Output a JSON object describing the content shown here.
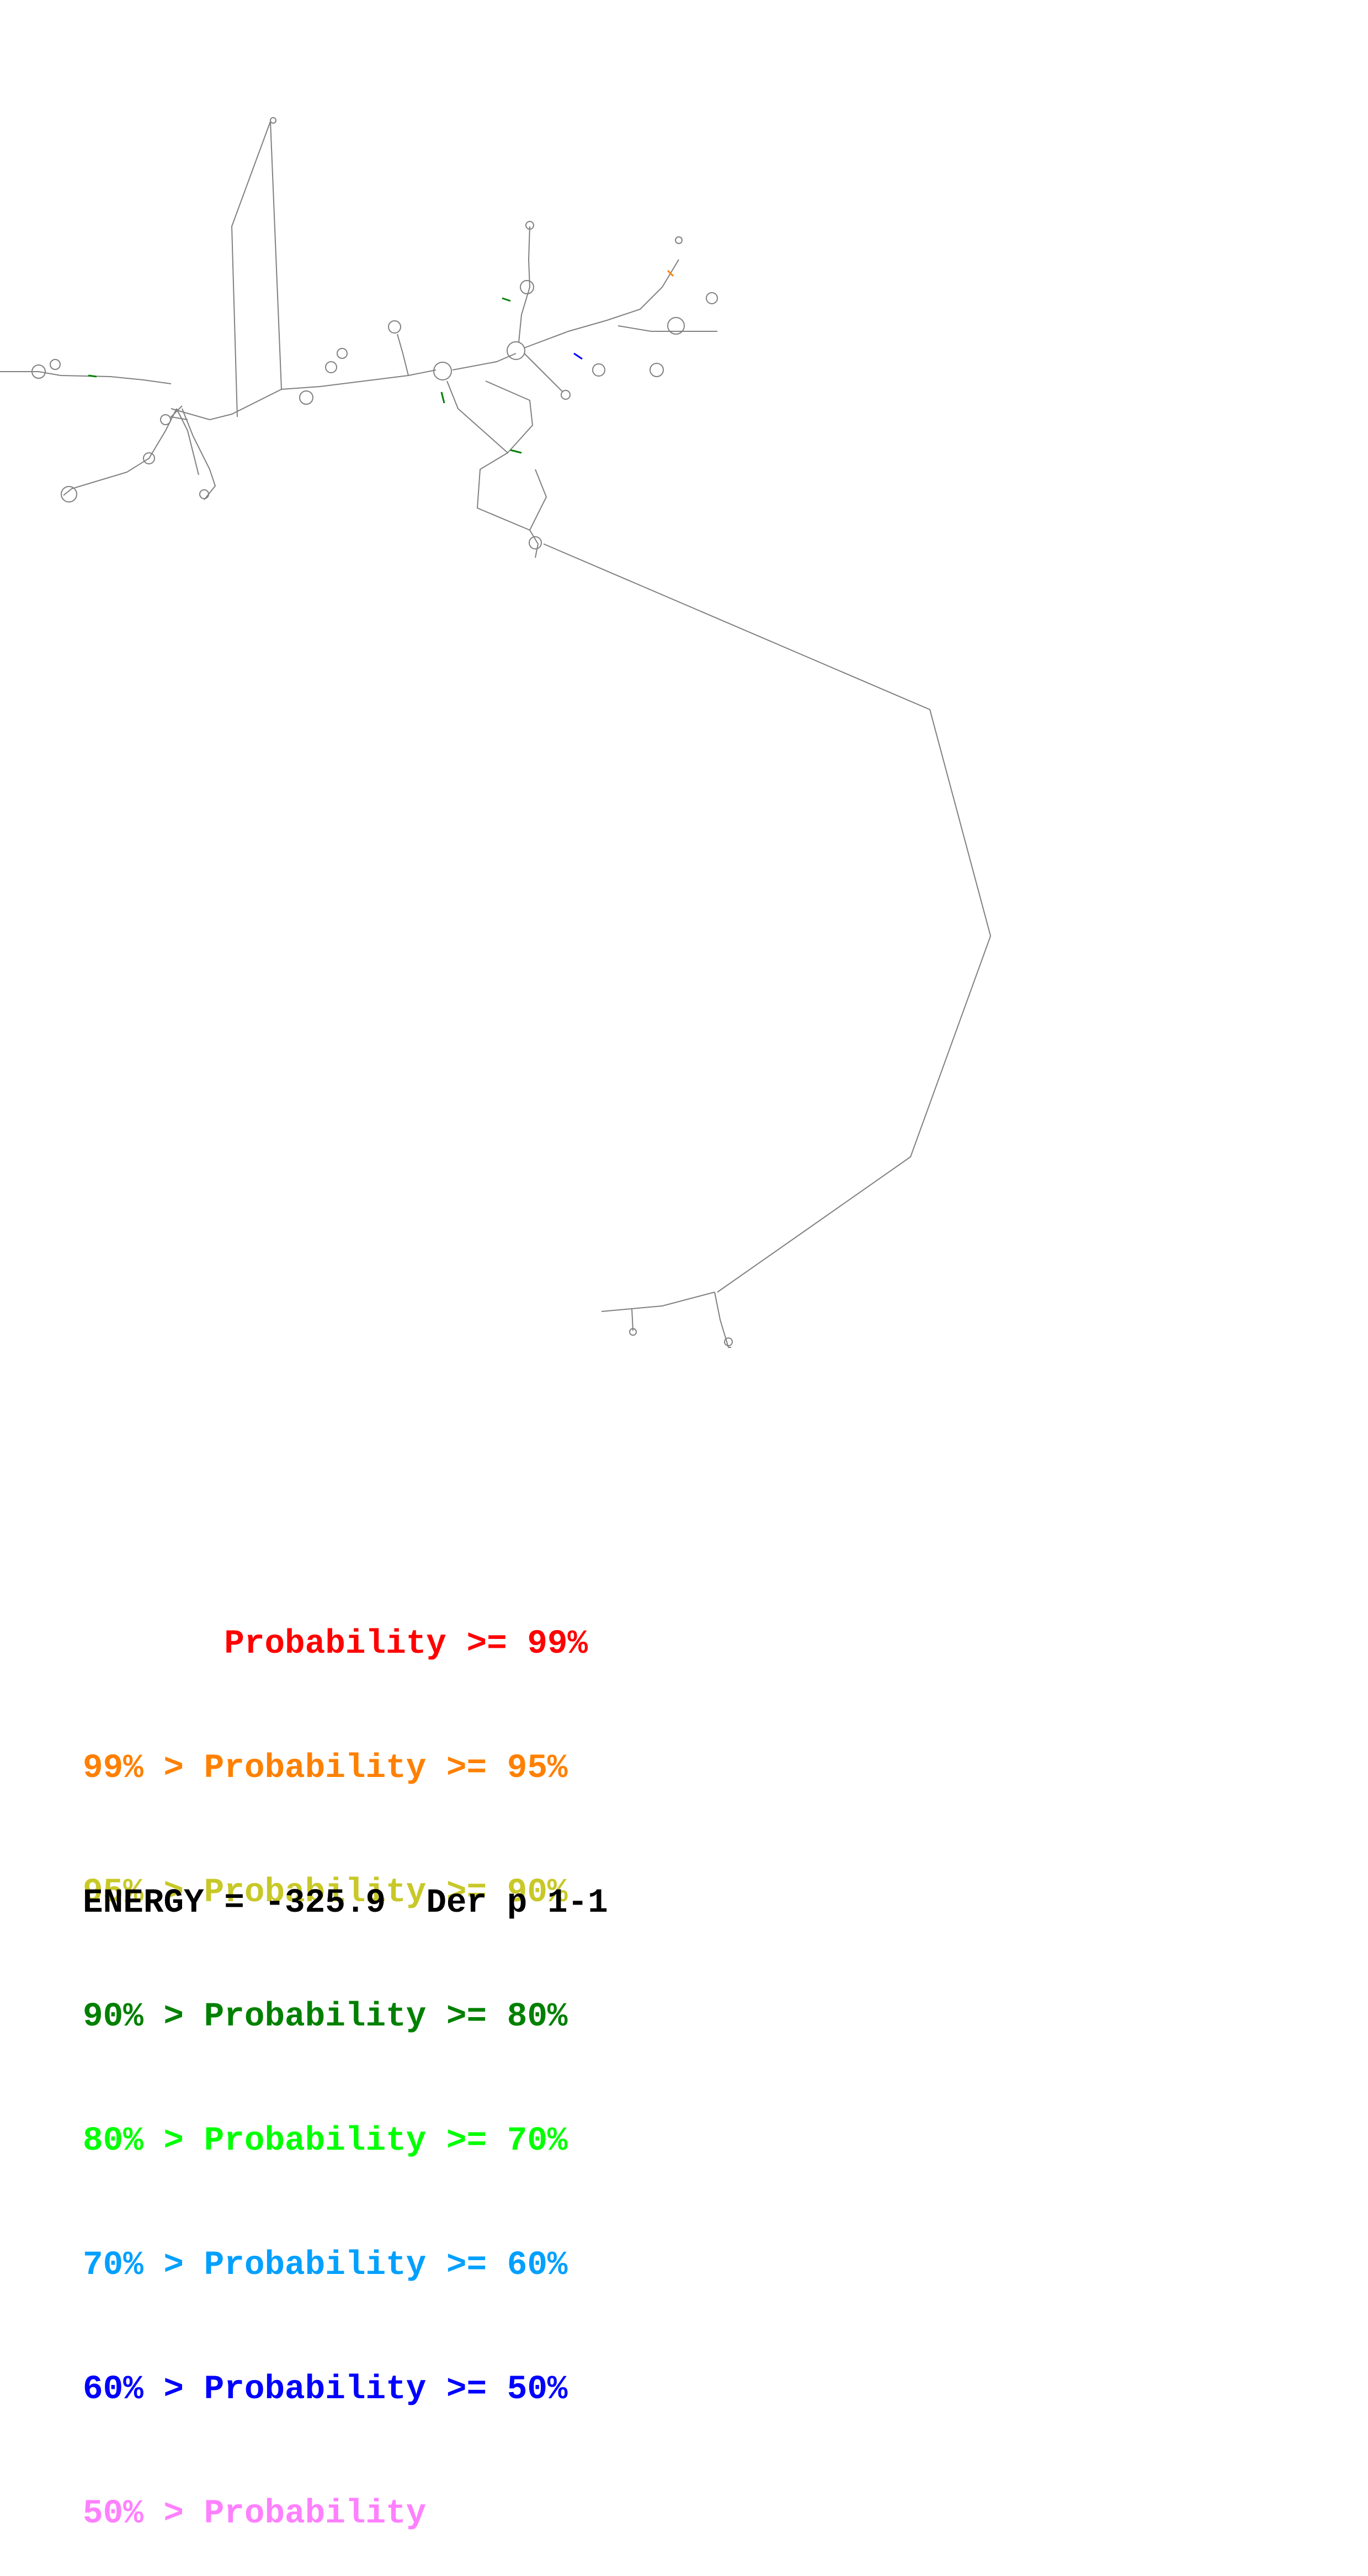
{
  "legend": [
    {
      "text": "       Probability >= 99%",
      "color": "#ff0000"
    },
    {
      "text": "99% > Probability >= 95%",
      "color": "#ff8000"
    },
    {
      "text": "95% > Probability >= 90%",
      "color": "#c8c828"
    },
    {
      "text": "90% > Probability >= 80%",
      "color": "#008000"
    },
    {
      "text": "80% > Probability >= 70%",
      "color": "#00ff00"
    },
    {
      "text": "70% > Probability >= 60%",
      "color": "#00a0ff"
    },
    {
      "text": "60% > Probability >= 50%",
      "color": "#0000ff"
    },
    {
      "text": "50% > Probability",
      "color": "#ff80ff"
    }
  ],
  "footer": {
    "energy_label": "ENERGY = -325.9",
    "molecule_name": "Der p 1-1"
  },
  "colors": {
    "backbone": "#808080",
    "text": "#000000",
    "background": "#ffffff"
  }
}
